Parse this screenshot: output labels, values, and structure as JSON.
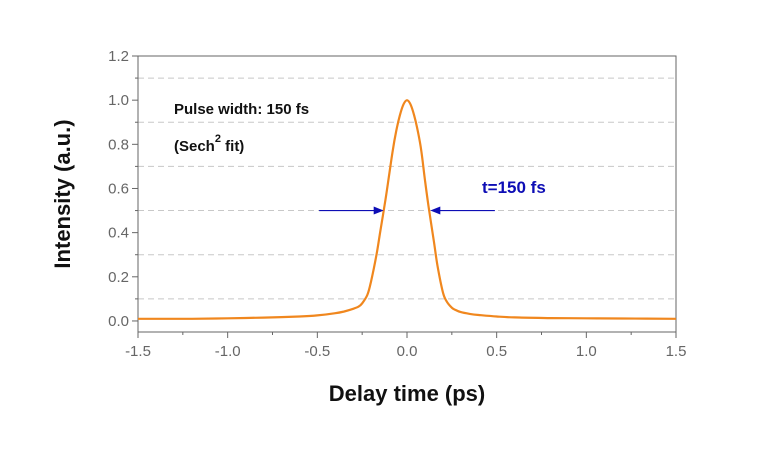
{
  "chart_data": {
    "type": "line",
    "title": "",
    "xlabel": "Delay time (ps)",
    "ylabel": "Intensity (a.u.)",
    "xlim": [
      -1.5,
      1.5
    ],
    "ylim": [
      -0.05,
      1.2
    ],
    "xticks": [
      -1.5,
      -1.0,
      -0.5,
      0.0,
      0.5,
      1.0,
      1.5
    ],
    "xtick_labels": [
      "-1.5",
      "-1.0",
      "-0.5",
      "0.0",
      "0.5",
      "1.0",
      "1.5"
    ],
    "yticks": [
      0.0,
      0.2,
      0.4,
      0.6,
      0.8,
      1.0,
      1.2
    ],
    "ytick_labels": [
      "0.0",
      "0.2",
      "0.4",
      "0.6",
      "0.8",
      "1.0",
      "1.2"
    ],
    "grid": "horizontal dashed",
    "gridlines_y": [
      0.1,
      0.3,
      0.5,
      0.7,
      0.9,
      1.1
    ],
    "series": [
      {
        "name": "",
        "color": "#f0871e",
        "x": [
          -1.5,
          -1.2,
          -1.0,
          -0.8,
          -0.6,
          -0.5,
          -0.4,
          -0.35,
          -0.3,
          -0.27,
          -0.25,
          -0.22,
          -0.2,
          -0.17,
          -0.15,
          -0.12,
          -0.1,
          -0.08,
          -0.06,
          -0.04,
          -0.02,
          0.0,
          0.02,
          0.04,
          0.06,
          0.08,
          0.1,
          0.12,
          0.15,
          0.17,
          0.2,
          0.22,
          0.25,
          0.27,
          0.3,
          0.35,
          0.4,
          0.5,
          0.6,
          0.8,
          1.0,
          1.2,
          1.5
        ],
        "y": [
          0.01,
          0.01,
          0.012,
          0.015,
          0.02,
          0.025,
          0.035,
          0.043,
          0.055,
          0.065,
          0.08,
          0.12,
          0.18,
          0.3,
          0.4,
          0.55,
          0.66,
          0.77,
          0.86,
          0.93,
          0.98,
          1.0,
          0.98,
          0.93,
          0.86,
          0.77,
          0.64,
          0.52,
          0.36,
          0.25,
          0.13,
          0.09,
          0.06,
          0.05,
          0.04,
          0.032,
          0.027,
          0.02,
          0.016,
          0.013,
          0.012,
          0.011,
          0.01
        ]
      }
    ],
    "annotations": {
      "pulse_width_text": "Pulse width: 150 fs",
      "fit_prefix": "(Sech",
      "fit_sup": "2",
      "fit_suffix": " fit)",
      "fwhm_text": "t=150 fs",
      "fwhm_color": "#0d0db5",
      "fwhm_level": 0.5,
      "fwhm_left_x": -0.13,
      "fwhm_right_x": 0.13,
      "fwhm_arrow_left_from_x": -0.49,
      "fwhm_arrow_right_from_x": 0.49
    }
  }
}
